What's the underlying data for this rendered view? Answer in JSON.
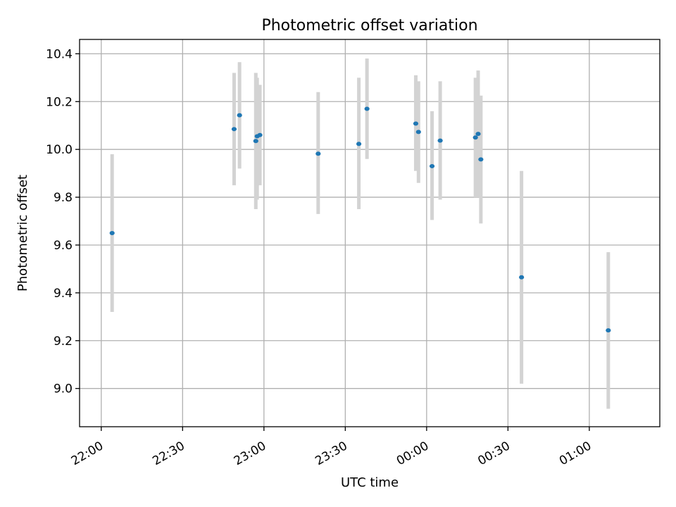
{
  "chart_data": {
    "type": "scatter",
    "title": "Photometric offset variation",
    "xlabel": "UTC time",
    "ylabel": "Photometric offset",
    "x_axis_kind": "time",
    "xlim": [
      "21:52",
      "01:26"
    ],
    "ylim": [
      8.84,
      10.46
    ],
    "x_ticks": [
      {
        "label": "22:00",
        "t": "22:00"
      },
      {
        "label": "22:30",
        "t": "22:30"
      },
      {
        "label": "23:00",
        "t": "23:00"
      },
      {
        "label": "23:30",
        "t": "23:30"
      },
      {
        "label": "00:00",
        "t": "00:00"
      },
      {
        "label": "00:30",
        "t": "00:30"
      },
      {
        "label": "01:00",
        "t": "01:00"
      }
    ],
    "y_ticks": [
      9.0,
      9.2,
      9.4,
      9.6,
      9.8,
      10.0,
      10.2,
      10.4
    ],
    "y_tick_labels": [
      "9.0",
      "9.2",
      "9.4",
      "9.6",
      "9.8",
      "10.0",
      "10.2",
      "10.4"
    ],
    "grid": true,
    "point_color": "#1f77b4",
    "errorbar_color": "#d3d3d3",
    "points": [
      {
        "t": "22:04",
        "y": 9.65,
        "lo": 9.32,
        "hi": 9.98
      },
      {
        "t": "22:49",
        "y": 10.085,
        "lo": 9.85,
        "hi": 10.32
      },
      {
        "t": "22:51",
        "y": 10.143,
        "lo": 9.92,
        "hi": 10.365
      },
      {
        "t": "22:57",
        "y": 10.035,
        "lo": 9.75,
        "hi": 10.32
      },
      {
        "t": "22:57.5",
        "y": 10.055,
        "lo": 9.79,
        "hi": 10.3
      },
      {
        "t": "22:58.5",
        "y": 10.06,
        "lo": 9.85,
        "hi": 10.27
      },
      {
        "t": "23:20",
        "y": 9.982,
        "lo": 9.73,
        "hi": 10.24
      },
      {
        "t": "23:35",
        "y": 10.023,
        "lo": 9.75,
        "hi": 10.3
      },
      {
        "t": "23:38",
        "y": 10.17,
        "lo": 9.96,
        "hi": 10.38
      },
      {
        "t": "23:56",
        "y": 10.108,
        "lo": 9.91,
        "hi": 10.31
      },
      {
        "t": "23:57",
        "y": 10.073,
        "lo": 9.86,
        "hi": 10.285
      },
      {
        "t": "00:02",
        "y": 9.93,
        "lo": 9.705,
        "hi": 10.16
      },
      {
        "t": "00:05",
        "y": 10.037,
        "lo": 9.79,
        "hi": 10.285
      },
      {
        "t": "00:18",
        "y": 10.05,
        "lo": 9.8,
        "hi": 10.3
      },
      {
        "t": "00:19",
        "y": 10.065,
        "lo": 9.8,
        "hi": 10.33
      },
      {
        "t": "00:20",
        "y": 9.958,
        "lo": 9.69,
        "hi": 10.225
      },
      {
        "t": "00:35",
        "y": 9.465,
        "lo": 9.02,
        "hi": 9.91
      },
      {
        "t": "01:07",
        "y": 9.243,
        "lo": 8.915,
        "hi": 9.57
      }
    ]
  }
}
